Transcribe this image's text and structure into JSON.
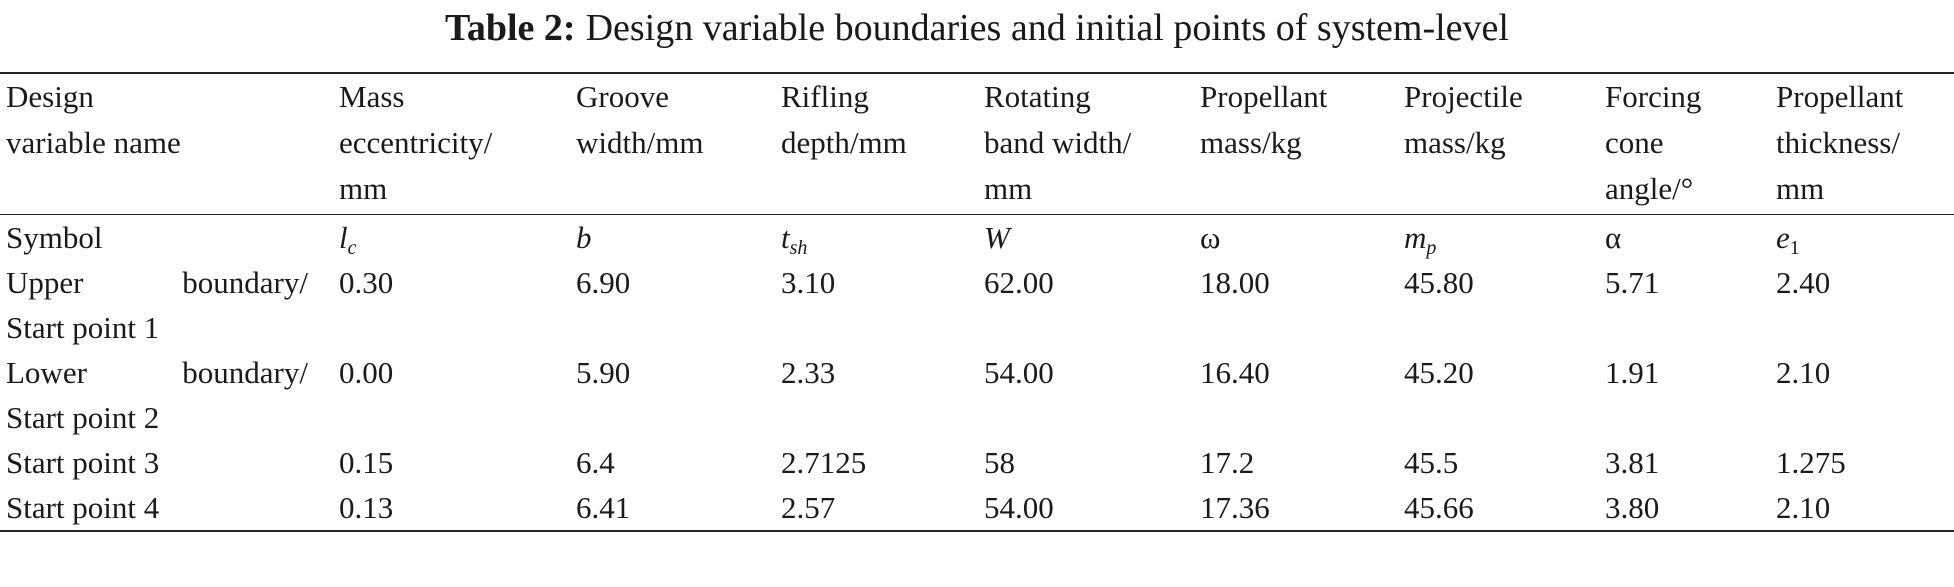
{
  "title": {
    "label": "Table 2:",
    "text": "Design variable boundaries and initial points of system-level"
  },
  "table": {
    "header": [
      [
        "Design",
        "variable name"
      ],
      [
        "Mass",
        "eccentricity/",
        "mm"
      ],
      [
        "Groove",
        "width/mm"
      ],
      [
        "Rifling",
        "depth/mm"
      ],
      [
        "Rotating",
        "band width/",
        "mm"
      ],
      [
        "Propellant",
        "mass/kg"
      ],
      [
        "Projectile",
        "mass/kg"
      ],
      [
        "Forcing",
        "cone",
        "angle/°"
      ],
      [
        "Propellant",
        "thickness/",
        "mm"
      ]
    ],
    "symbols": {
      "label": "Symbol",
      "cells": [
        {
          "base": "l",
          "sub": "c"
        },
        {
          "base": "b"
        },
        {
          "base": "t",
          "sub": "sh"
        },
        {
          "base": "W"
        },
        {
          "base": "ω"
        },
        {
          "base": "m",
          "sub": "p"
        },
        {
          "base": "α"
        },
        {
          "base": "e",
          "sub": "1"
        }
      ]
    },
    "rows": [
      {
        "label": [
          "Upper boundary/",
          "Start point 1"
        ],
        "cells": [
          "0.30",
          "6.90",
          "3.10",
          "62.00",
          "18.00",
          "45.80",
          "5.71",
          "2.40"
        ]
      },
      {
        "label": [
          "Lower boundary/",
          "Start point 2"
        ],
        "cells": [
          "0.00",
          "5.90",
          "2.33",
          "54.00",
          "16.40",
          "45.20",
          "1.91",
          "2.10"
        ]
      },
      {
        "label": [
          "Start point 3"
        ],
        "cells": [
          "0.15",
          "6.4",
          "2.7125",
          "58",
          "17.2",
          "45.5",
          "3.81",
          "1.275"
        ]
      },
      {
        "label": [
          "Start point 4"
        ],
        "cells": [
          "0.13",
          "6.41",
          "2.57",
          "54.00",
          "17.36",
          "45.66",
          "3.80",
          "2.10"
        ]
      }
    ]
  }
}
